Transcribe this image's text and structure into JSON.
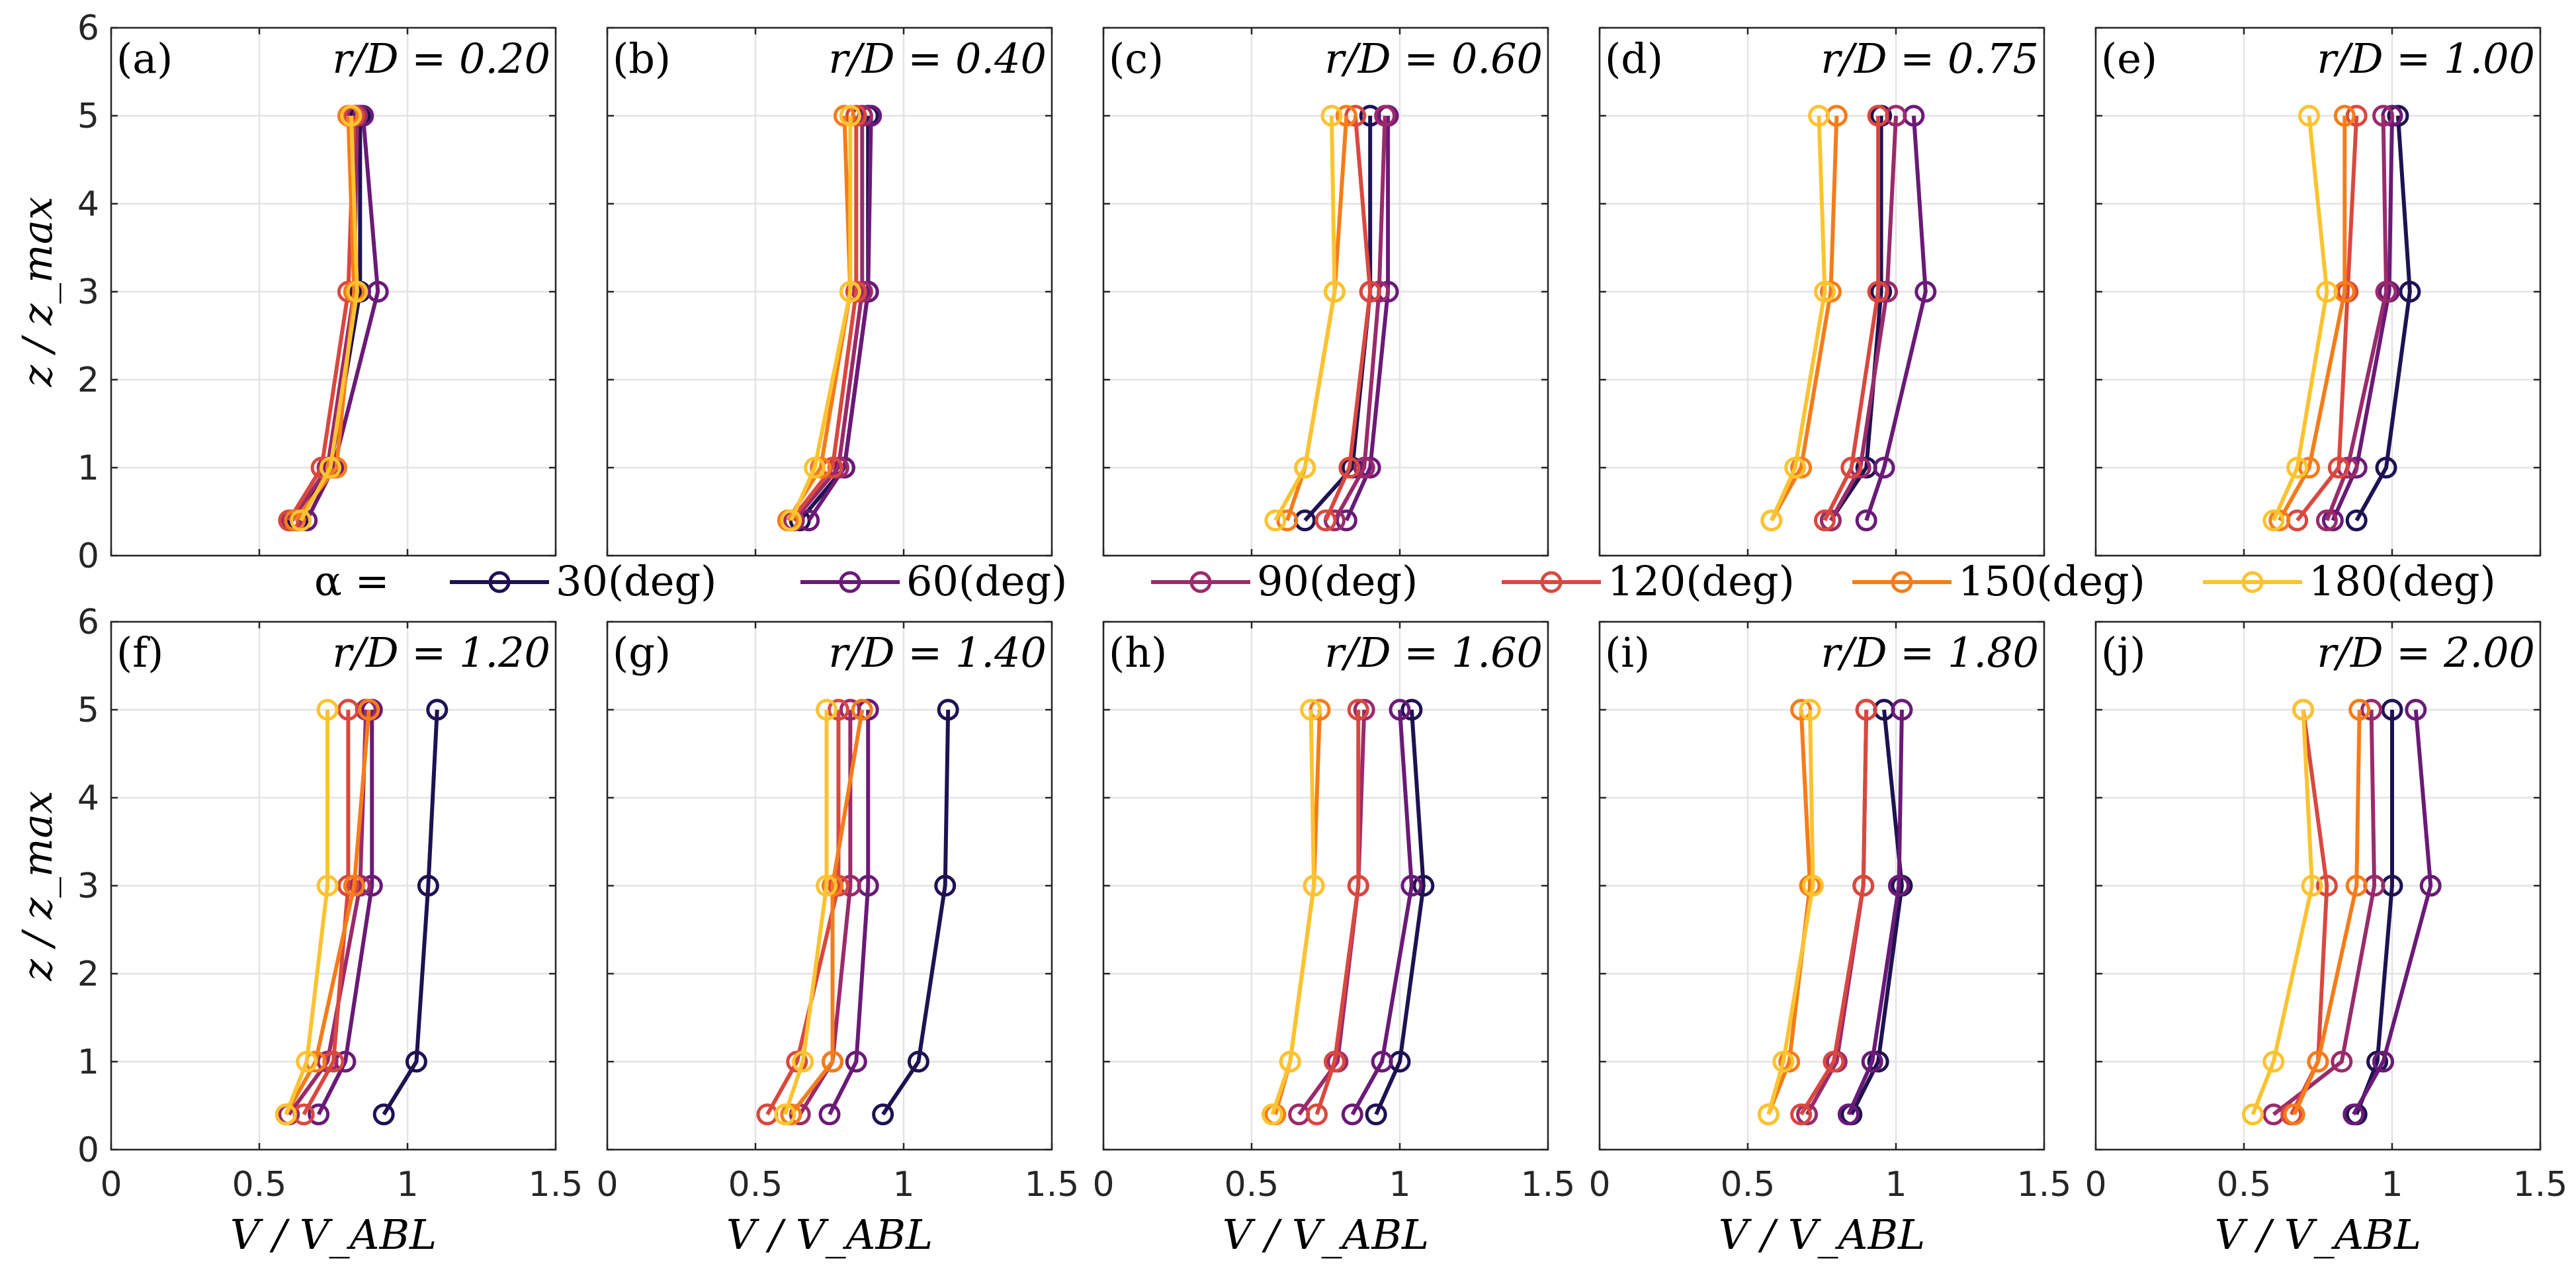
{
  "chart_data": {
    "type": "line",
    "figure_layout": "2 rows x 5 columns of profile plots",
    "x_axis_label": "V / V_ABL",
    "y_axis_label": "z / z_max",
    "xlim": [
      0,
      1.5
    ],
    "ylim": [
      0,
      6
    ],
    "xticks": [
      "0",
      "0.5",
      "1",
      "1.5"
    ],
    "yticks": [
      "0",
      "1",
      "2",
      "3",
      "4",
      "5",
      "6"
    ],
    "z_levels": [
      0.4,
      1,
      3,
      5
    ],
    "legend": {
      "prefix": "α =",
      "entries": [
        "30(deg)",
        "60(deg)",
        "90(deg)",
        "120(deg)",
        "150(deg)",
        "180(deg)"
      ]
    },
    "series_colors": [
      "#1f1252",
      "#6a1a77",
      "#9a2b6b",
      "#d9483f",
      "#f57c1a",
      "#fbc330"
    ],
    "panels": [
      {
        "label": "(a)",
        "r_over_D": "r/D = 0.20",
        "series": [
          {
            "name": "30(deg)",
            "x": [
              0.63,
              0.74,
              0.84,
              0.84
            ]
          },
          {
            "name": "60(deg)",
            "x": [
              0.66,
              0.75,
              0.9,
              0.85
            ]
          },
          {
            "name": "90(deg)",
            "x": [
              0.61,
              0.73,
              0.82,
              0.83
            ]
          },
          {
            "name": "120(deg)",
            "x": [
              0.6,
              0.71,
              0.8,
              0.82
            ]
          },
          {
            "name": "150(deg)",
            "x": [
              0.62,
              0.76,
              0.82,
              0.8
            ]
          },
          {
            "name": "180(deg)",
            "x": [
              0.64,
              0.74,
              0.83,
              0.81
            ]
          }
        ]
      },
      {
        "label": "(b)",
        "r_over_D": "r/D = 0.40",
        "series": [
          {
            "name": "30(deg)",
            "x": [
              0.65,
              0.8,
              0.88,
              0.88
            ]
          },
          {
            "name": "60(deg)",
            "x": [
              0.68,
              0.8,
              0.88,
              0.89
            ]
          },
          {
            "name": "90(deg)",
            "x": [
              0.63,
              0.78,
              0.86,
              0.86
            ]
          },
          {
            "name": "120(deg)",
            "x": [
              0.62,
              0.76,
              0.84,
              0.84
            ]
          },
          {
            "name": "150(deg)",
            "x": [
              0.61,
              0.72,
              0.82,
              0.8
            ]
          },
          {
            "name": "180(deg)",
            "x": [
              0.62,
              0.7,
              0.82,
              0.82
            ]
          }
        ]
      },
      {
        "label": "(c)",
        "r_over_D": "r/D = 0.60",
        "series": [
          {
            "name": "30(deg)",
            "x": [
              0.68,
              0.84,
              0.9,
              0.9
            ]
          },
          {
            "name": "60(deg)",
            "x": [
              0.82,
              0.9,
              0.96,
              0.96
            ]
          },
          {
            "name": "90(deg)",
            "x": [
              0.78,
              0.88,
              0.93,
              0.95
            ]
          },
          {
            "name": "120(deg)",
            "x": [
              0.75,
              0.83,
              0.9,
              0.85
            ]
          },
          {
            "name": "150(deg)",
            "x": [
              0.62,
              0.68,
              0.78,
              0.82
            ]
          },
          {
            "name": "180(deg)",
            "x": [
              0.58,
              0.68,
              0.78,
              0.77
            ]
          }
        ]
      },
      {
        "label": "(d)",
        "r_over_D": "r/D = 0.75",
        "series": [
          {
            "name": "30(deg)",
            "x": [
              0.78,
              0.9,
              0.95,
              0.95
            ]
          },
          {
            "name": "60(deg)",
            "x": [
              0.9,
              0.96,
              1.1,
              1.06
            ]
          },
          {
            "name": "90(deg)",
            "x": [
              0.78,
              0.88,
              0.97,
              1.0
            ]
          },
          {
            "name": "120(deg)",
            "x": [
              0.76,
              0.85,
              0.94,
              0.94
            ]
          },
          {
            "name": "150(deg)",
            "x": [
              0.58,
              0.68,
              0.78,
              0.8
            ]
          },
          {
            "name": "180(deg)",
            "x": [
              0.58,
              0.66,
              0.76,
              0.74
            ]
          }
        ]
      },
      {
        "label": "(e)",
        "r_over_D": "r/D = 1.00",
        "series": [
          {
            "name": "30(deg)",
            "x": [
              0.88,
              0.98,
              1.06,
              1.02
            ]
          },
          {
            "name": "60(deg)",
            "x": [
              0.8,
              0.88,
              0.99,
              1.0
            ]
          },
          {
            "name": "90(deg)",
            "x": [
              0.78,
              0.85,
              0.98,
              0.97
            ]
          },
          {
            "name": "120(deg)",
            "x": [
              0.68,
              0.82,
              0.85,
              0.88
            ]
          },
          {
            "name": "150(deg)",
            "x": [
              0.62,
              0.72,
              0.84,
              0.84
            ]
          },
          {
            "name": "180(deg)",
            "x": [
              0.6,
              0.68,
              0.78,
              0.72
            ]
          }
        ]
      },
      {
        "label": "(f)",
        "r_over_D": "r/D = 1.20",
        "series": [
          {
            "name": "30(deg)",
            "x": [
              0.92,
              1.03,
              1.07,
              1.1
            ]
          },
          {
            "name": "60(deg)",
            "x": [
              0.7,
              0.79,
              0.88,
              0.88
            ]
          },
          {
            "name": "90(deg)",
            "x": [
              0.6,
              0.73,
              0.84,
              0.86
            ]
          },
          {
            "name": "120(deg)",
            "x": [
              0.65,
              0.75,
              0.8,
              0.8
            ]
          },
          {
            "name": "150(deg)",
            "x": [
              0.59,
              0.69,
              0.82,
              0.87
            ]
          },
          {
            "name": "180(deg)",
            "x": [
              0.59,
              0.66,
              0.73,
              0.73
            ]
          }
        ]
      },
      {
        "label": "(g)",
        "r_over_D": "r/D = 1.40",
        "series": [
          {
            "name": "30(deg)",
            "x": [
              0.93,
              1.05,
              1.14,
              1.15
            ]
          },
          {
            "name": "60(deg)",
            "x": [
              0.75,
              0.84,
              0.88,
              0.88
            ]
          },
          {
            "name": "90(deg)",
            "x": [
              0.65,
              0.76,
              0.82,
              0.82
            ]
          },
          {
            "name": "120(deg)",
            "x": [
              0.54,
              0.64,
              0.78,
              0.78
            ]
          },
          {
            "name": "150(deg)",
            "x": [
              0.62,
              0.76,
              0.76,
              0.86
            ]
          },
          {
            "name": "180(deg)",
            "x": [
              0.6,
              0.66,
              0.74,
              0.74
            ]
          }
        ]
      },
      {
        "label": "(h)",
        "r_over_D": "r/D = 1.60",
        "series": [
          {
            "name": "30(deg)",
            "x": [
              0.92,
              1.0,
              1.08,
              1.04
            ]
          },
          {
            "name": "60(deg)",
            "x": [
              0.84,
              0.94,
              1.04,
              1.0
            ]
          },
          {
            "name": "90(deg)",
            "x": [
              0.66,
              0.79,
              0.86,
              0.88
            ]
          },
          {
            "name": "120(deg)",
            "x": [
              0.72,
              0.78,
              0.86,
              0.86
            ]
          },
          {
            "name": "150(deg)",
            "x": [
              0.58,
              0.63,
              0.71,
              0.73
            ]
          },
          {
            "name": "180(deg)",
            "x": [
              0.57,
              0.63,
              0.71,
              0.7
            ]
          }
        ]
      },
      {
        "label": "(i)",
        "r_over_D": "r/D = 1.80",
        "series": [
          {
            "name": "30(deg)",
            "x": [
              0.85,
              0.94,
              1.02,
              0.96
            ]
          },
          {
            "name": "60(deg)",
            "x": [
              0.84,
              0.92,
              1.01,
              1.02
            ]
          },
          {
            "name": "90(deg)",
            "x": [
              0.7,
              0.8,
              0.89,
              0.9
            ]
          },
          {
            "name": "120(deg)",
            "x": [
              0.68,
              0.79,
              0.89,
              0.9
            ]
          },
          {
            "name": "150(deg)",
            "x": [
              0.57,
              0.64,
              0.71,
              0.68
            ]
          },
          {
            "name": "180(deg)",
            "x": [
              0.57,
              0.62,
              0.72,
              0.71
            ]
          }
        ]
      },
      {
        "label": "(j)",
        "r_over_D": "r/D = 2.00",
        "series": [
          {
            "name": "30(deg)",
            "x": [
              0.88,
              0.95,
              1.0,
              1.0
            ]
          },
          {
            "name": "60(deg)",
            "x": [
              0.87,
              0.97,
              1.13,
              1.08
            ]
          },
          {
            "name": "90(deg)",
            "x": [
              0.6,
              0.83,
              0.94,
              0.93
            ]
          },
          {
            "name": "120(deg)",
            "x": [
              0.66,
              0.75,
              0.78,
              0.7
            ]
          },
          {
            "name": "150(deg)",
            "x": [
              0.67,
              0.75,
              0.88,
              0.89
            ]
          },
          {
            "name": "180(deg)",
            "x": [
              0.53,
              0.6,
              0.73,
              0.7
            ]
          }
        ]
      }
    ]
  }
}
